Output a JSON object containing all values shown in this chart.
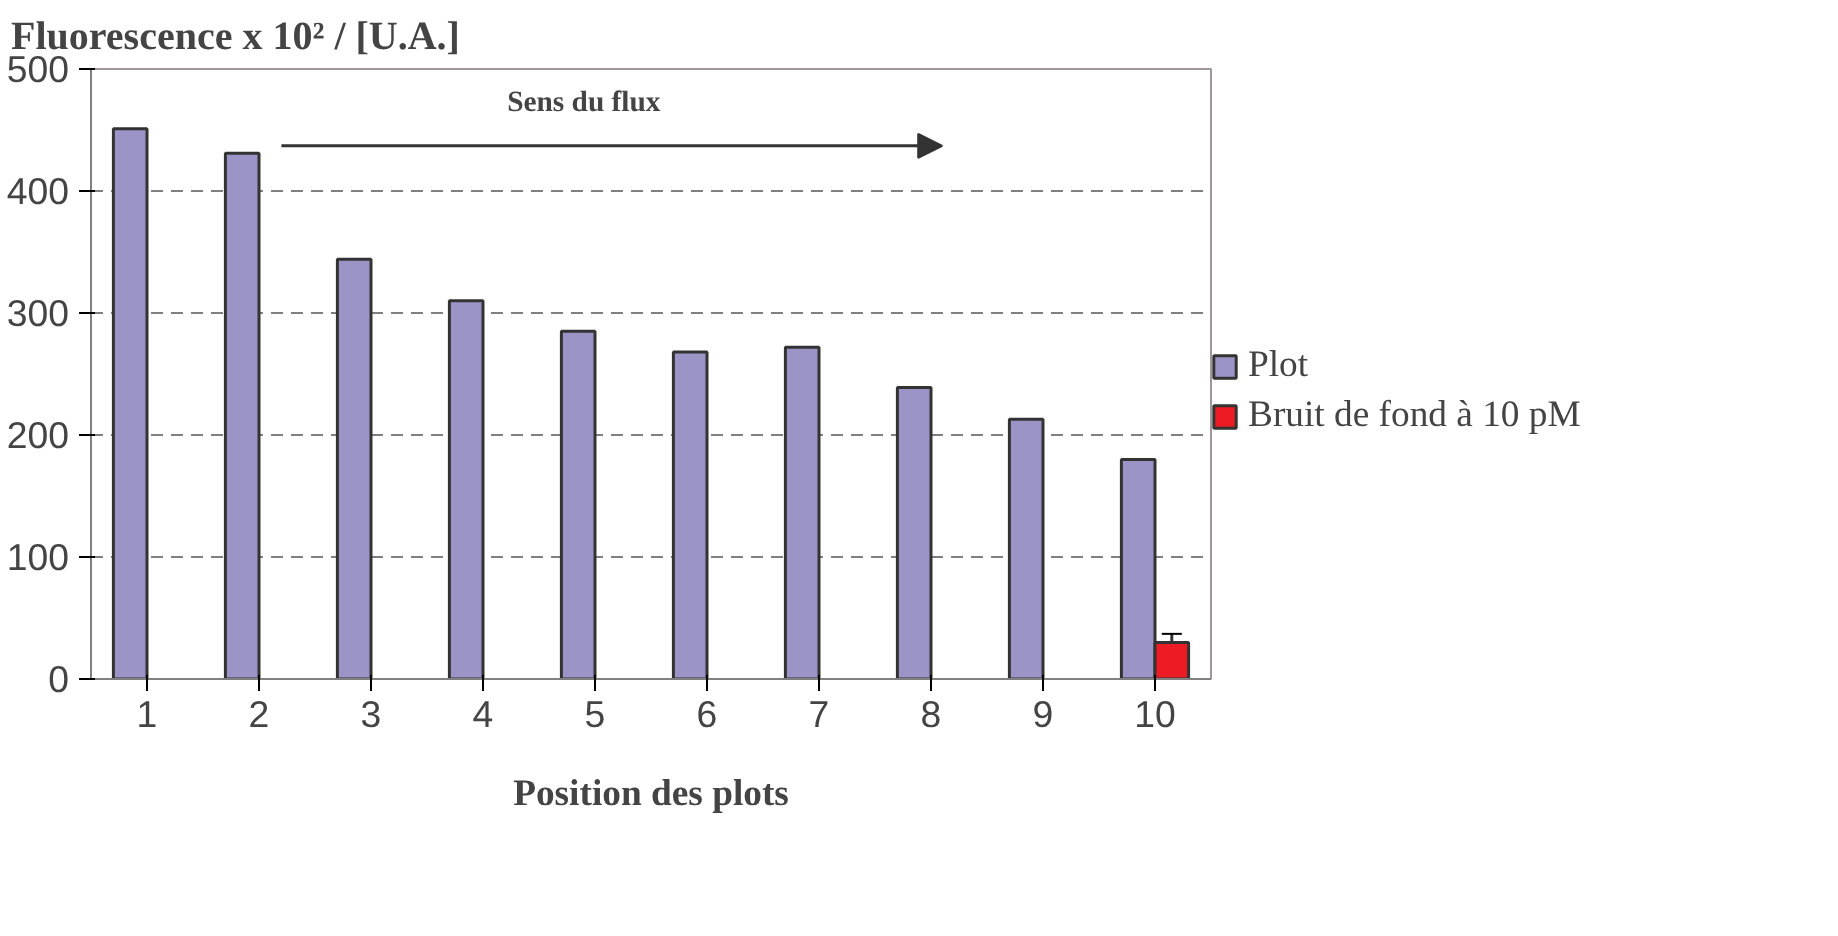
{
  "chart_data": {
    "type": "bar",
    "title": "Fluorescence x 10² / [U.A.]",
    "xlabel": "Position des plots",
    "categories": [
      "1",
      "2",
      "3",
      "4",
      "5",
      "6",
      "7",
      "8",
      "9",
      "10"
    ],
    "series": [
      {
        "name": "Plot",
        "color": "#9b94c7",
        "values": [
          451,
          431,
          344,
          310,
          285,
          268,
          272,
          239,
          213,
          180
        ]
      },
      {
        "name": "Bruit de fond à 10 pM",
        "color": "#ed1c24",
        "values": [
          null,
          null,
          null,
          null,
          null,
          null,
          null,
          null,
          null,
          30
        ],
        "errors": [
          null,
          null,
          null,
          null,
          null,
          null,
          null,
          null,
          null,
          7
        ]
      }
    ],
    "annotations": [
      "Sens du flux"
    ],
    "ylim": [
      0,
      500
    ],
    "yticks": [
      0,
      100,
      200,
      300,
      400,
      500
    ],
    "grid": "y",
    "legend": "right"
  }
}
